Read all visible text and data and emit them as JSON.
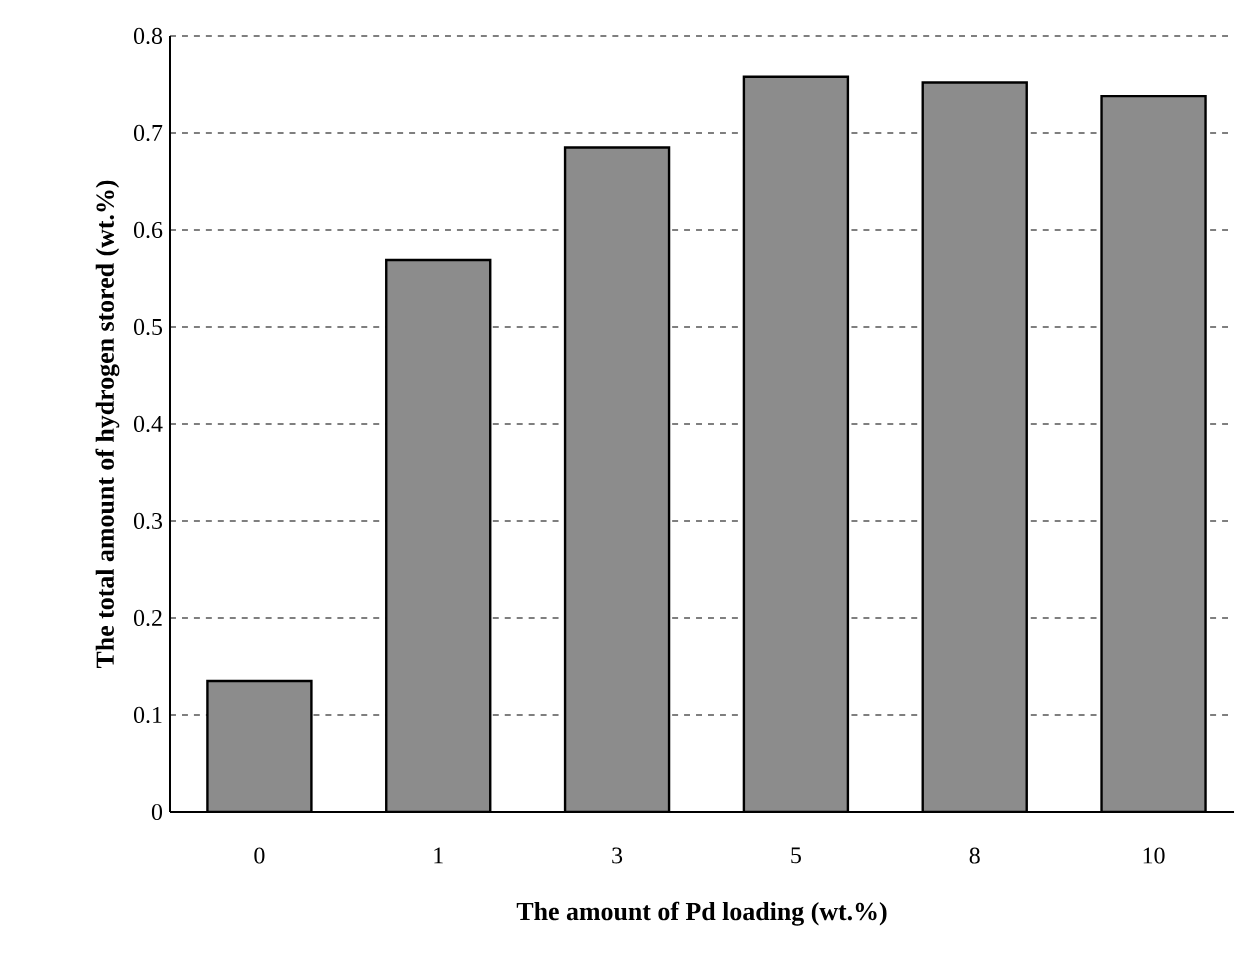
{
  "chart_data": {
    "type": "bar",
    "xlabel": "The amount of Pd loading (wt.%)",
    "ylabel": "The total amount of hydrogen stored (wt.%)",
    "categories": [
      "0",
      "1",
      "3",
      "5",
      "8",
      "10"
    ],
    "values": [
      0.135,
      0.569,
      0.685,
      0.758,
      0.752,
      0.738
    ],
    "color": "#8c8c8c",
    "ylim": [
      0,
      0.8
    ],
    "yticks": [
      0,
      0.1,
      0.2,
      0.3,
      0.4,
      0.5,
      0.6,
      0.7,
      0.8
    ],
    "grid": "y"
  }
}
